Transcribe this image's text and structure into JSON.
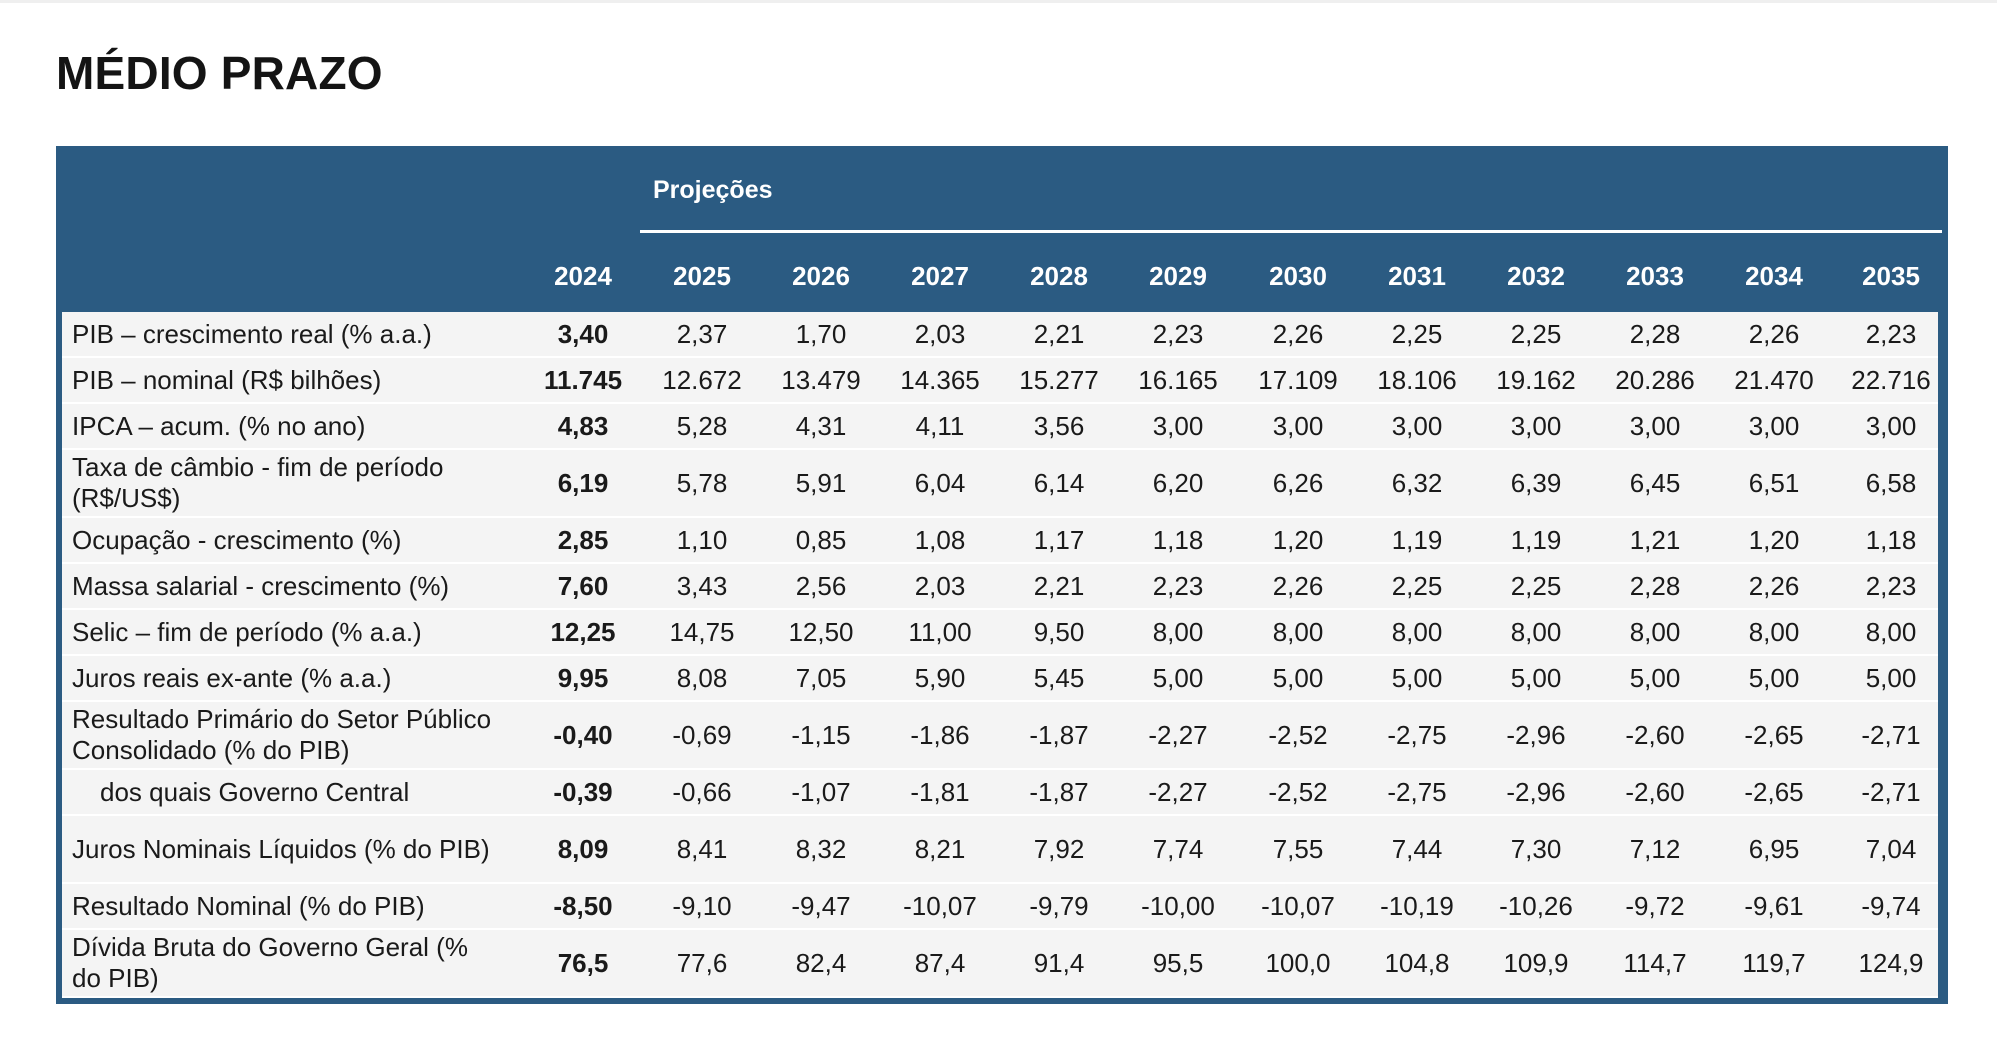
{
  "title": "MÉDIO PRAZO",
  "header": {
    "projections_label": "Projeções",
    "years": [
      "2024",
      "2025",
      "2026",
      "2027",
      "2028",
      "2029",
      "2030",
      "2031",
      "2032",
      "2033",
      "2034",
      "2035"
    ]
  },
  "rows": [
    {
      "label": "PIB – crescimento real (% a.a.)",
      "values": [
        "3,40",
        "2,37",
        "1,70",
        "2,03",
        "2,21",
        "2,23",
        "2,26",
        "2,25",
        "2,25",
        "2,28",
        "2,26",
        "2,23"
      ]
    },
    {
      "label": "PIB – nominal (R$ bilhões)",
      "values": [
        "11.745",
        "12.672",
        "13.479",
        "14.365",
        "15.277",
        "16.165",
        "17.109",
        "18.106",
        "19.162",
        "20.286",
        "21.470",
        "22.716"
      ]
    },
    {
      "label": "IPCA – acum. (% no ano)",
      "values": [
        "4,83",
        "5,28",
        "4,31",
        "4,11",
        "3,56",
        "3,00",
        "3,00",
        "3,00",
        "3,00",
        "3,00",
        "3,00",
        "3,00"
      ]
    },
    {
      "label": "Taxa de câmbio - fim de período (R$/US$)",
      "values": [
        "6,19",
        "5,78",
        "5,91",
        "6,04",
        "6,14",
        "6,20",
        "6,26",
        "6,32",
        "6,39",
        "6,45",
        "6,51",
        "6,58"
      ]
    },
    {
      "label": "Ocupação - crescimento (%)",
      "values": [
        "2,85",
        "1,10",
        "0,85",
        "1,08",
        "1,17",
        "1,18",
        "1,20",
        "1,19",
        "1,19",
        "1,21",
        "1,20",
        "1,18"
      ]
    },
    {
      "label": "Massa salarial - crescimento (%)",
      "values": [
        "7,60",
        "3,43",
        "2,56",
        "2,03",
        "2,21",
        "2,23",
        "2,26",
        "2,25",
        "2,25",
        "2,28",
        "2,26",
        "2,23"
      ]
    },
    {
      "label": "Selic – fim de período (% a.a.)",
      "values": [
        "12,25",
        "14,75",
        "12,50",
        "11,00",
        "9,50",
        "8,00",
        "8,00",
        "8,00",
        "8,00",
        "8,00",
        "8,00",
        "8,00"
      ]
    },
    {
      "label": "Juros reais ex-ante (% a.a.)",
      "values": [
        "9,95",
        "8,08",
        "7,05",
        "5,90",
        "5,45",
        "5,00",
        "5,00",
        "5,00",
        "5,00",
        "5,00",
        "5,00",
        "5,00"
      ]
    },
    {
      "label": "Resultado Primário do Setor Público Consolidado (% do PIB)",
      "values": [
        "-0,40",
        "-0,69",
        "-1,15",
        "-1,86",
        "-1,87",
        "-2,27",
        "-2,52",
        "-2,75",
        "-2,96",
        "-2,60",
        "-2,65",
        "-2,71"
      ]
    },
    {
      "label": "dos quais Governo Central",
      "values": [
        "-0,39",
        "-0,66",
        "-1,07",
        "-1,81",
        "-1,87",
        "-2,27",
        "-2,52",
        "-2,75",
        "-2,96",
        "-2,60",
        "-2,65",
        "-2,71"
      ]
    },
    {
      "label": "Juros Nominais Líquidos (% do PIB)",
      "values": [
        "8,09",
        "8,41",
        "8,32",
        "8,21",
        "7,92",
        "7,74",
        "7,55",
        "7,44",
        "7,30",
        "7,12",
        "6,95",
        "7,04"
      ]
    },
    {
      "label": "Resultado Nominal (% do PIB)",
      "values": [
        "-8,50",
        "-9,10",
        "-9,47",
        "-10,07",
        "-9,79",
        "-10,00",
        "-10,07",
        "-10,19",
        "-10,26",
        "-9,72",
        "-9,61",
        "-9,74"
      ]
    },
    {
      "label": "Dívida Bruta do Governo Geral (% do PIB)",
      "values": [
        "76,5",
        "77,6",
        "82,4",
        "87,4",
        "91,4",
        "95,5",
        "100,0",
        "104,8",
        "109,9",
        "114,7",
        "119,7",
        "124,9"
      ]
    }
  ]
}
